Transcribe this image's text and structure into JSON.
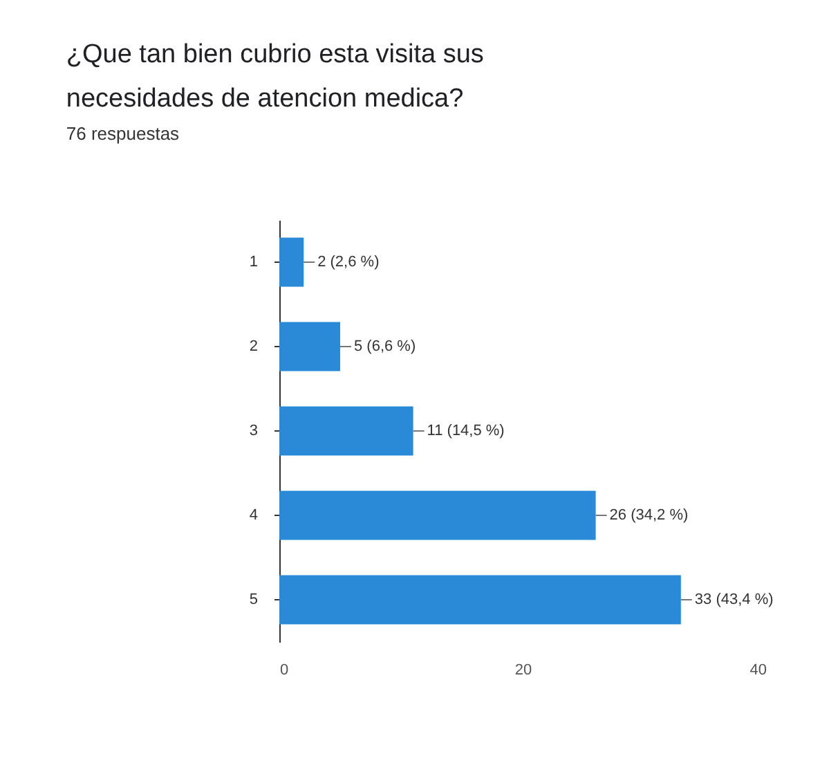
{
  "chart_data": {
    "type": "bar",
    "orientation": "horizontal",
    "title": [
      "¿Que tan bien cubrio esta visita sus",
      "necesidades de atencion medica?"
    ],
    "subtitle": "76 respuestas",
    "categories": [
      "1",
      "2",
      "3",
      "4",
      "5"
    ],
    "values": [
      2,
      5,
      11,
      26,
      33
    ],
    "value_labels": [
      "2 (2,6 %)",
      "5 (6,6 %)",
      "11 (14,5 %)",
      "26 (34,2 %)",
      "33 (43,4 %)"
    ],
    "color": "#2b8ad8",
    "xlim": [
      0,
      40
    ],
    "xticks": [
      0,
      20,
      40
    ],
    "grid": false
  }
}
